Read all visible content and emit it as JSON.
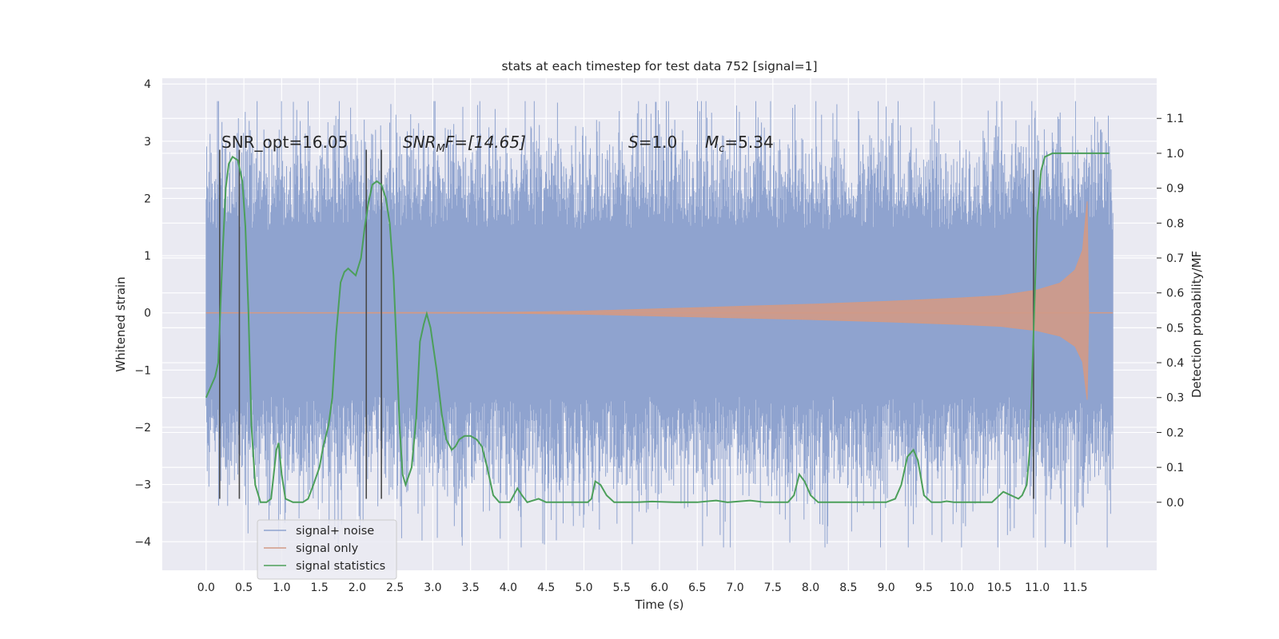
{
  "chart_data": {
    "type": "line",
    "title": "stats at each timestep for test data 752 [signal=1]",
    "xlabel": "Time (s)",
    "ylabel": "Whitened strain",
    "ylabel_right": "Detection probability/MF",
    "xlim": [
      -0.58,
      12.58
    ],
    "ylim_left": [
      -4.5,
      4.1
    ],
    "ylim_right": [
      -0.195,
      1.215
    ],
    "x_ticks": [
      "0.0",
      "0.5",
      "1.0",
      "1.5",
      "2.0",
      "2.5",
      "3.0",
      "3.5",
      "4.0",
      "4.5",
      "5.0",
      "5.5",
      "6.0",
      "6.5",
      "7.0",
      "7.5",
      "8.0",
      "8.5",
      "9.0",
      "9.5",
      "10.0",
      "10.5",
      "11.0",
      "11.5"
    ],
    "y_ticks_left": [
      "4",
      "3",
      "2",
      "1",
      "0",
      "−1",
      "−2",
      "−3",
      "−4"
    ],
    "y_ticks_right": [
      "1.1",
      "1.0",
      "0.9",
      "0.8",
      "0.7",
      "0.6",
      "0.5",
      "0.4",
      "0.3",
      "0.2",
      "0.1",
      "0.0"
    ],
    "grid": true,
    "legend_location": "lower-left",
    "annotations": {
      "snr_opt": "SNR_opt=16.05",
      "snr_mf_base": "SNR",
      "snr_mf_sub": "M",
      "snr_mf_rest": "F=[14.65]",
      "s_sym": "S",
      "s_val": "=1.0",
      "mc_base": "M",
      "mc_sub": "c",
      "mc_val": "=5.34"
    },
    "series": [
      {
        "name": "signal+ noise",
        "color": "#8fa3cf",
        "axis": "left",
        "x_range": [
          0.0,
          12.0
        ],
        "core_envelope": 1.25,
        "spike_max": 3.7,
        "spike_min": -4.1
      },
      {
        "name": "signal only",
        "color": "#d19a86",
        "axis": "left",
        "envelope": [
          {
            "x": 0.0,
            "y": 0.0
          },
          {
            "x": 4.0,
            "y": 0.01
          },
          {
            "x": 5.0,
            "y": 0.03
          },
          {
            "x": 6.0,
            "y": 0.07
          },
          {
            "x": 7.0,
            "y": 0.11
          },
          {
            "x": 8.0,
            "y": 0.15
          },
          {
            "x": 9.0,
            "y": 0.2
          },
          {
            "x": 10.0,
            "y": 0.26
          },
          {
            "x": 10.5,
            "y": 0.3
          },
          {
            "x": 11.0,
            "y": 0.4
          },
          {
            "x": 11.3,
            "y": 0.52
          },
          {
            "x": 11.5,
            "y": 0.75
          },
          {
            "x": 11.6,
            "y": 1.1
          },
          {
            "x": 11.66,
            "y": 1.95
          },
          {
            "x": 11.68,
            "y": 0.0
          }
        ]
      },
      {
        "name": "signal statistics",
        "color": "#4c9f5a",
        "axis": "right",
        "points": [
          [
            0.0,
            0.3
          ],
          [
            0.12,
            0.36
          ],
          [
            0.16,
            0.4
          ],
          [
            0.22,
            0.72
          ],
          [
            0.26,
            0.9
          ],
          [
            0.3,
            0.97
          ],
          [
            0.35,
            0.99
          ],
          [
            0.42,
            0.98
          ],
          [
            0.48,
            0.92
          ],
          [
            0.52,
            0.79
          ],
          [
            0.56,
            0.55
          ],
          [
            0.6,
            0.22
          ],
          [
            0.65,
            0.05
          ],
          [
            0.72,
            0.0
          ],
          [
            0.8,
            0.0
          ],
          [
            0.86,
            0.01
          ],
          [
            0.93,
            0.15
          ],
          [
            0.96,
            0.17
          ],
          [
            1.0,
            0.08
          ],
          [
            1.05,
            0.01
          ],
          [
            1.15,
            0.0
          ],
          [
            1.28,
            0.0
          ],
          [
            1.35,
            0.01
          ],
          [
            1.42,
            0.05
          ],
          [
            1.5,
            0.1
          ],
          [
            1.55,
            0.16
          ],
          [
            1.62,
            0.22
          ],
          [
            1.67,
            0.3
          ],
          [
            1.72,
            0.48
          ],
          [
            1.78,
            0.63
          ],
          [
            1.83,
            0.66
          ],
          [
            1.88,
            0.67
          ],
          [
            1.93,
            0.66
          ],
          [
            1.98,
            0.65
          ],
          [
            2.05,
            0.7
          ],
          [
            2.1,
            0.79
          ],
          [
            2.15,
            0.86
          ],
          [
            2.2,
            0.91
          ],
          [
            2.26,
            0.92
          ],
          [
            2.32,
            0.91
          ],
          [
            2.38,
            0.87
          ],
          [
            2.43,
            0.8
          ],
          [
            2.48,
            0.65
          ],
          [
            2.52,
            0.45
          ],
          [
            2.56,
            0.22
          ],
          [
            2.6,
            0.08
          ],
          [
            2.64,
            0.05
          ],
          [
            2.72,
            0.1
          ],
          [
            2.78,
            0.24
          ],
          [
            2.83,
            0.46
          ],
          [
            2.88,
            0.51
          ],
          [
            2.92,
            0.54
          ],
          [
            2.97,
            0.5
          ],
          [
            3.05,
            0.38
          ],
          [
            3.12,
            0.25
          ],
          [
            3.18,
            0.18
          ],
          [
            3.25,
            0.15
          ],
          [
            3.3,
            0.16
          ],
          [
            3.35,
            0.18
          ],
          [
            3.42,
            0.19
          ],
          [
            3.5,
            0.19
          ],
          [
            3.58,
            0.18
          ],
          [
            3.65,
            0.16
          ],
          [
            3.72,
            0.1
          ],
          [
            3.8,
            0.02
          ],
          [
            3.88,
            0.0
          ],
          [
            4.02,
            0.0
          ],
          [
            4.12,
            0.04
          ],
          [
            4.18,
            0.02
          ],
          [
            4.25,
            0.0
          ],
          [
            4.4,
            0.01
          ],
          [
            4.5,
            0.0
          ],
          [
            5.05,
            0.0
          ],
          [
            5.1,
            0.01
          ],
          [
            5.15,
            0.06
          ],
          [
            5.22,
            0.05
          ],
          [
            5.3,
            0.02
          ],
          [
            5.4,
            0.0
          ],
          [
            5.7,
            0.0
          ],
          [
            5.9,
            0.002
          ],
          [
            6.2,
            0.0
          ],
          [
            6.5,
            0.0
          ],
          [
            6.75,
            0.005
          ],
          [
            6.9,
            0.0
          ],
          [
            7.2,
            0.005
          ],
          [
            7.4,
            0.0
          ],
          [
            7.7,
            0.0
          ],
          [
            7.78,
            0.02
          ],
          [
            7.85,
            0.08
          ],
          [
            7.92,
            0.06
          ],
          [
            8.0,
            0.02
          ],
          [
            8.1,
            0.0
          ],
          [
            8.6,
            0.0
          ],
          [
            9.0,
            0.0
          ],
          [
            9.12,
            0.01
          ],
          [
            9.2,
            0.05
          ],
          [
            9.28,
            0.13
          ],
          [
            9.36,
            0.15
          ],
          [
            9.42,
            0.12
          ],
          [
            9.5,
            0.02
          ],
          [
            9.6,
            0.0
          ],
          [
            9.72,
            0.0
          ],
          [
            9.8,
            0.003
          ],
          [
            9.9,
            0.0
          ],
          [
            10.4,
            0.0
          ],
          [
            10.55,
            0.03
          ],
          [
            10.65,
            0.02
          ],
          [
            10.75,
            0.01
          ],
          [
            10.8,
            0.02
          ],
          [
            10.86,
            0.05
          ],
          [
            10.9,
            0.15
          ],
          [
            10.93,
            0.35
          ],
          [
            10.96,
            0.55
          ],
          [
            11.0,
            0.82
          ],
          [
            11.05,
            0.95
          ],
          [
            11.1,
            0.99
          ],
          [
            11.2,
            1.0
          ],
          [
            11.5,
            1.0
          ],
          [
            11.7,
            1.0
          ],
          [
            11.95,
            1.0
          ]
        ]
      }
    ],
    "vertical_lines": [
      {
        "x": 0.18,
        "y_top": 2.85,
        "y_bottom": -3.25
      },
      {
        "x": 0.44,
        "y_top": 2.85,
        "y_bottom": -3.25
      },
      {
        "x": 2.12,
        "y_top": 2.85,
        "y_bottom": -3.25
      },
      {
        "x": 2.32,
        "y_top": 2.85,
        "y_bottom": -3.25
      },
      {
        "x": 10.95,
        "y_top": 2.5,
        "y_bottom": -3.25
      }
    ]
  }
}
